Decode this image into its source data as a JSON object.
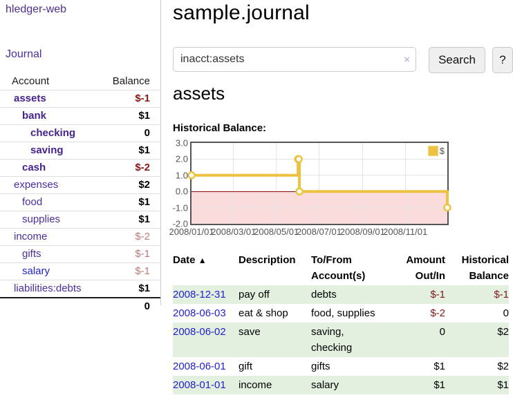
{
  "sidebar": {
    "brand": "hledger-web",
    "nav": {
      "journal_label": "Journal"
    },
    "accounts": {
      "headers": {
        "account": "Account",
        "balance": "Balance"
      },
      "rows": [
        {
          "name": "assets",
          "depth": 1,
          "name_style": "bold-purple",
          "balance": "$-1",
          "balance_style": "neg-strong"
        },
        {
          "name": "bank",
          "depth": 2,
          "name_style": "bold-purple",
          "balance": "$1",
          "balance_style": "pos-strong"
        },
        {
          "name": "checking",
          "depth": 3,
          "name_style": "bold-purple",
          "balance": "0",
          "balance_style": "pos-strong"
        },
        {
          "name": "saving",
          "depth": 3,
          "name_style": "bold-purple",
          "balance": "$1",
          "balance_style": "pos-strong"
        },
        {
          "name": "cash",
          "depth": 2,
          "name_style": "bold-purple",
          "balance": "$-2",
          "balance_style": "neg-strong"
        },
        {
          "name": "expenses",
          "depth": 1,
          "name_style": "purple",
          "balance": "$2",
          "balance_style": "pos-strong"
        },
        {
          "name": "food",
          "depth": 2,
          "name_style": "purple",
          "balance": "$1",
          "balance_style": "pos-strong"
        },
        {
          "name": "supplies",
          "depth": 2,
          "name_style": "purple",
          "balance": "$1",
          "balance_style": "pos-strong"
        },
        {
          "name": "income",
          "depth": 1,
          "name_style": "purple",
          "balance": "$-2",
          "balance_style": "neg-soft"
        },
        {
          "name": "gifts",
          "depth": 2,
          "name_style": "purple",
          "balance": "$-1",
          "balance_style": "neg-soft"
        },
        {
          "name": "salary",
          "depth": 2,
          "name_style": "blue",
          "balance": "$-1",
          "balance_style": "neg-soft"
        },
        {
          "name": "liabilities:debts",
          "depth": 1,
          "name_style": "purple",
          "balance": "$1",
          "balance_style": "pos-strong"
        }
      ],
      "total": "0"
    }
  },
  "main": {
    "title": "sample.journal",
    "search": {
      "value": "inacct:assets",
      "clear_icon": "×",
      "search_label": "Search",
      "help_label": "?"
    },
    "account_heading": "assets",
    "chart_label": "Historical Balance:",
    "register": {
      "sort_icon": "▲",
      "headers": {
        "date": "Date",
        "description": "Description",
        "accounts": "To/From Account(s)",
        "amount": "Amount Out/In",
        "balance": "Historical Balance"
      },
      "rows": [
        {
          "date": "2008-12-31",
          "description": "pay off",
          "accounts": "debts",
          "amount": "$-1",
          "amount_neg": true,
          "balance": "$-1",
          "balance_neg": true
        },
        {
          "date": "2008-06-03",
          "description": "eat & shop",
          "accounts": "food, supplies",
          "amount": "$-2",
          "amount_neg": true,
          "balance": "0",
          "balance_neg": false
        },
        {
          "date": "2008-06-02",
          "description": "save",
          "accounts": "saving, checking",
          "amount": "0",
          "amount_neg": false,
          "balance": "$2",
          "balance_neg": false
        },
        {
          "date": "2008-06-01",
          "description": "gift",
          "accounts": "gifts",
          "amount": "$1",
          "amount_neg": false,
          "balance": "$2",
          "balance_neg": false
        },
        {
          "date": "2008-01-01",
          "description": "income",
          "accounts": "salary",
          "amount": "$1",
          "amount_neg": false,
          "balance": "$1",
          "balance_neg": false
        }
      ]
    }
  },
  "chart_data": {
    "type": "line",
    "style": "step",
    "title": "Historical Balance",
    "legend": [
      {
        "label": "$",
        "color": "#edc240"
      }
    ],
    "legend_position": "top-right",
    "grid": true,
    "x_range": [
      "2008-01-01",
      "2008-12-31"
    ],
    "ylim": [
      -2,
      3
    ],
    "y_ticks": [
      {
        "label": "3.0",
        "value": 3
      },
      {
        "label": "2.0",
        "value": 2
      },
      {
        "label": "1.0",
        "value": 1
      },
      {
        "label": "0.0",
        "value": 0
      },
      {
        "label": "-1.0",
        "value": -1
      },
      {
        "label": "-2.0",
        "value": -2
      }
    ],
    "x_ticks": [
      {
        "label": "2008/01/01",
        "date": "2008-01-01"
      },
      {
        "label": "2008/03/01",
        "date": "2008-03-01"
      },
      {
        "label": "2008/05/01",
        "date": "2008-05-01"
      },
      {
        "label": "2008/07/01",
        "date": "2008-07-01"
      },
      {
        "label": "2008/09/01",
        "date": "2008-09-01"
      },
      {
        "label": "2008/11/01",
        "date": "2008-11-01"
      }
    ],
    "series": [
      {
        "name": "$",
        "color": "#edc240",
        "points": [
          {
            "date": "2008-01-01",
            "value": 1
          },
          {
            "date": "2008-06-01",
            "value": 2
          },
          {
            "date": "2008-06-02",
            "value": 2
          },
          {
            "date": "2008-06-03",
            "value": 0
          },
          {
            "date": "2008-12-31",
            "value": -1
          }
        ]
      }
    ],
    "zero_line_color": "#8b0000",
    "negative_region_color": "#fbdcdc"
  },
  "colors": {
    "link_purple": "#4b2da0",
    "link_blue": "#2222cc",
    "negative_strong": "#8b1616",
    "negative_soft": "#bf7a7a",
    "stripe_green": "#e3efdf",
    "series_gold": "#edc240",
    "chart_border": "#545454"
  }
}
